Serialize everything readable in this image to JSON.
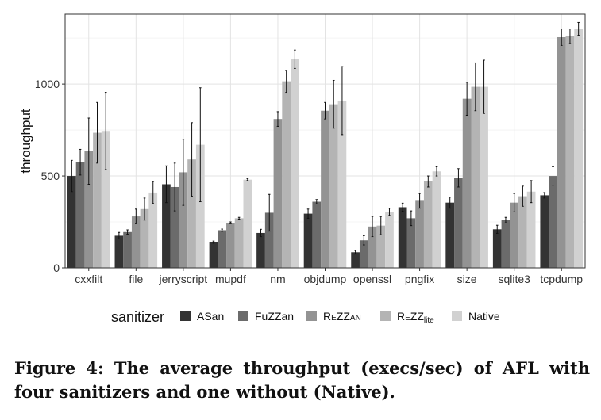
{
  "chart_data": {
    "type": "bar",
    "xlabel": "",
    "ylabel": "throughput",
    "ylim": [
      0,
      1380
    ],
    "yticks": [
      0,
      500,
      1000
    ],
    "grid": true,
    "legend_title": "sanitizer",
    "legend_position": "bottom",
    "categories": [
      "cxxfilt",
      "file",
      "jerryscript",
      "mupdf",
      "nm",
      "objdump",
      "openssl",
      "pngfix",
      "size",
      "sqlite3",
      "tcpdump"
    ],
    "series": [
      {
        "name": "ASan",
        "label_main": "ASan",
        "label_sub": "",
        "smallcaps": false,
        "color": "#333333",
        "values": [
          500,
          175,
          455,
          140,
          190,
          295,
          85,
          330,
          355,
          210,
          395
        ],
        "err": [
          85,
          18,
          100,
          6,
          20,
          25,
          10,
          22,
          30,
          22,
          15
        ]
      },
      {
        "name": "FuZZan",
        "label_main": "FuZZan",
        "label_sub": "",
        "smallcaps": false,
        "color": "#6b6b6b",
        "values": [
          575,
          195,
          440,
          205,
          300,
          360,
          150,
          270,
          490,
          260,
          500
        ],
        "err": [
          70,
          12,
          130,
          6,
          100,
          12,
          25,
          40,
          50,
          15,
          50
        ]
      },
      {
        "name": "REZZAN",
        "label_main": "ReZZ",
        "label_sub": "AN",
        "smallcaps": true,
        "color": "#939393",
        "values": [
          635,
          280,
          520,
          245,
          810,
          855,
          225,
          365,
          920,
          355,
          1255
        ],
        "err": [
          180,
          40,
          180,
          5,
          40,
          45,
          55,
          40,
          90,
          50,
          45
        ]
      },
      {
        "name": "REZZlite",
        "label_main": "ReZZ",
        "label_sub": "lite",
        "smallcaps": true,
        "color": "#b4b4b4",
        "values": [
          735,
          320,
          590,
          270,
          1015,
          890,
          230,
          470,
          985,
          390,
          1260
        ],
        "err": [
          165,
          60,
          200,
          5,
          60,
          130,
          50,
          30,
          130,
          55,
          40
        ]
      },
      {
        "name": "Native",
        "label_main": "Native",
        "label_sub": "",
        "smallcaps": false,
        "color": "#d1d1d1",
        "values": [
          745,
          410,
          670,
          480,
          1135,
          910,
          305,
          525,
          985,
          415,
          1300
        ],
        "err": [
          210,
          60,
          310,
          5,
          50,
          185,
          20,
          25,
          145,
          60,
          35
        ]
      }
    ]
  },
  "caption": {
    "text": "Figure 4: The average throughput (execs/sec) of AFL with four sanitizers and one without (Native)."
  }
}
